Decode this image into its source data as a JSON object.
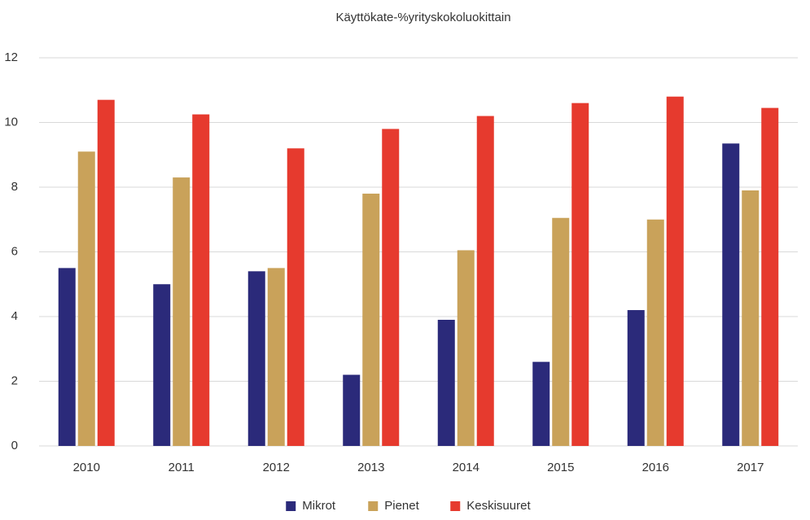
{
  "chart_data": {
    "type": "bar",
    "title": "Käyttökate-%yrityskokoluokittain",
    "categories": [
      "2010",
      "2011",
      "2012",
      "2013",
      "2014",
      "2015",
      "2016",
      "2017"
    ],
    "series": [
      {
        "name": "Mikrot",
        "color": "#2b2a7a",
        "values": [
          5.5,
          5.0,
          5.4,
          2.2,
          3.9,
          2.6,
          4.2,
          9.35
        ]
      },
      {
        "name": "Pienet",
        "color": "#c9a25a",
        "values": [
          9.1,
          8.3,
          5.5,
          7.8,
          6.05,
          7.05,
          7.0,
          7.9
        ]
      },
      {
        "name": "Keskisuuret",
        "color": "#e63a2e",
        "values": [
          10.7,
          10.25,
          9.2,
          9.8,
          10.2,
          10.6,
          10.8,
          10.45
        ]
      }
    ],
    "ylim": [
      0,
      12
    ],
    "yticks": [
      0,
      2,
      4,
      6,
      8,
      10,
      12
    ],
    "grid": true,
    "legend": "bottom"
  }
}
